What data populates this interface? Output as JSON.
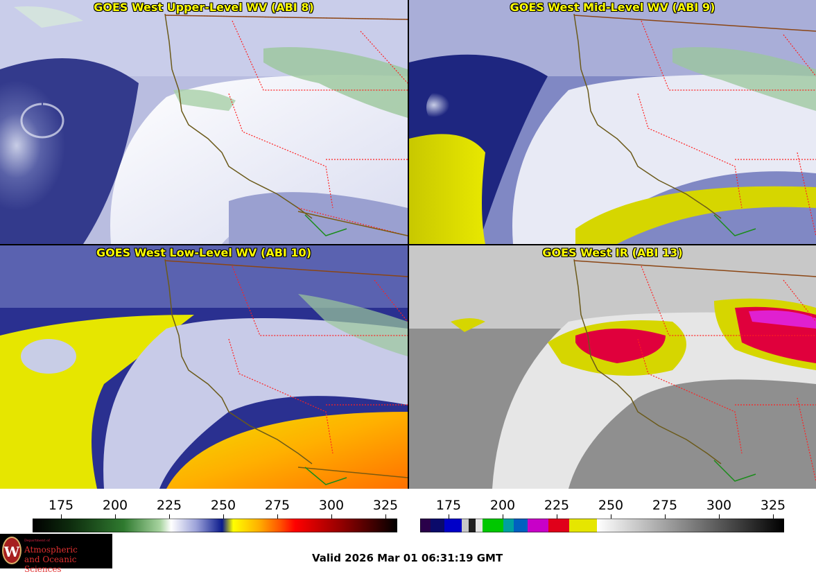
{
  "panels": {
    "upper": {
      "title": "GOES West Upper-Level WV (ABI 8)"
    },
    "mid": {
      "title": "GOES West Mid-Level WV (ABI 9)"
    },
    "low": {
      "title": "GOES West Low-Level WV (ABI 10)"
    },
    "ir": {
      "title": "GOES West IR (ABI 13)"
    }
  },
  "colorbars": {
    "wv": {
      "ticks": [
        "175",
        "200",
        "225",
        "250",
        "275",
        "300",
        "325"
      ]
    },
    "ir": {
      "ticks": [
        "175",
        "200",
        "225",
        "250",
        "275",
        "300",
        "325"
      ]
    }
  },
  "logo": {
    "department": "Department of",
    "line1": "Atmospheric",
    "line2": "and Oceanic Sciences",
    "seal_letter": "W"
  },
  "valid_time": "Valid 2026 Mar 01 06:31:19 GMT",
  "colors": {
    "title_text": "#ffff00",
    "state_borders": "#ff2020",
    "coastline": "#7a5a10"
  }
}
